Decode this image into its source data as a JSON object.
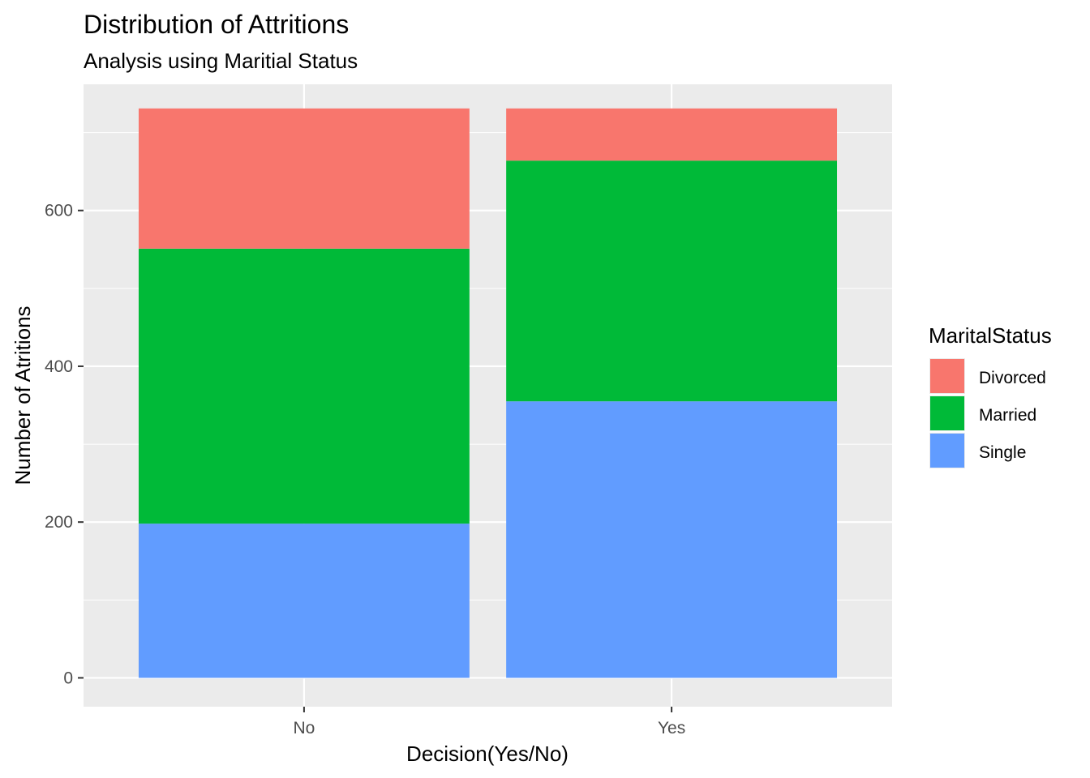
{
  "chart_data": {
    "type": "bar",
    "stacked": true,
    "title": "Distribution of Attritions",
    "subtitle": "Analysis using Maritial Status",
    "xlabel": "Decision(Yes/No)",
    "ylabel": "Number of Atritions",
    "categories": [
      "No",
      "Yes"
    ],
    "y_ticks": [
      "0",
      "200",
      "400",
      "600"
    ],
    "ylim": [
      -37,
      762
    ],
    "grid": true,
    "legend": {
      "title": "MaritalStatus",
      "position": "right"
    },
    "series": [
      {
        "name": "Single",
        "color": "#619CFF",
        "values": [
          198,
          355
        ]
      },
      {
        "name": "Married",
        "color": "#00BA38",
        "values": [
          353,
          309
        ]
      },
      {
        "name": "Divorced",
        "color": "#F8766D",
        "values": [
          180,
          67
        ]
      }
    ],
    "legend_order": [
      "Divorced",
      "Married",
      "Single"
    ],
    "panel_color": "#EBEBEB",
    "grid_color": "#FFFFFF"
  }
}
